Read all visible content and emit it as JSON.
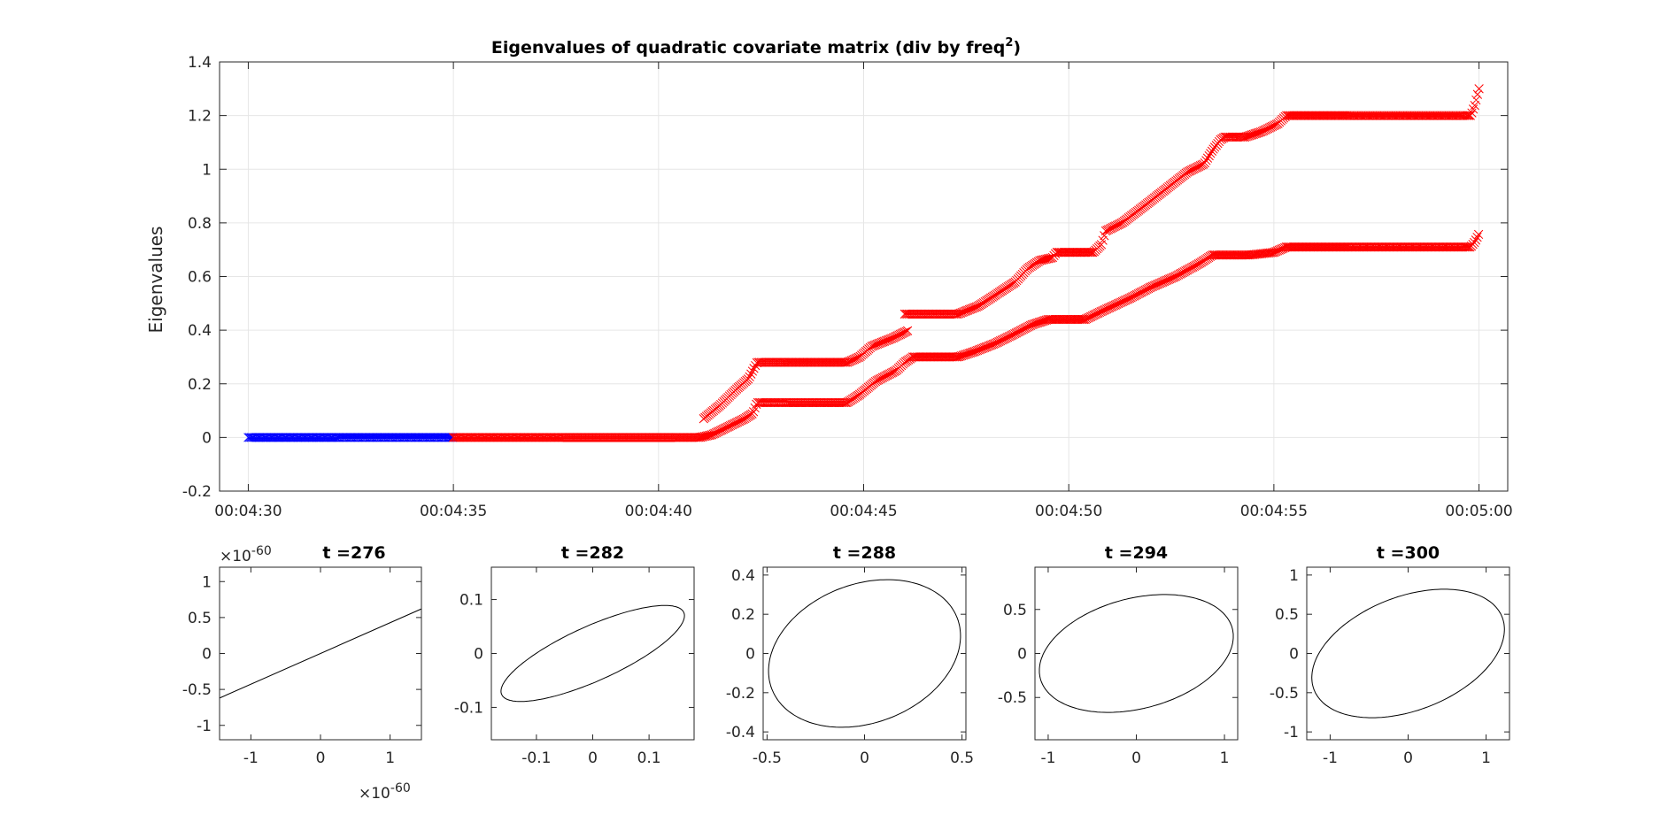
{
  "chart_data": [
    {
      "type": "scatter",
      "title": "Eigenvalues of quadratic covariate matrix (div by freq",
      "title_sup": "2",
      "title_end": ")",
      "xlabel": "",
      "ylabel": "Eigenvalues",
      "x_tick_labels": [
        "00:04:30",
        "00:04:35",
        "00:04:40",
        "00:04:45",
        "00:04:50",
        "00:04:55",
        "00:05:00"
      ],
      "x_ticks_s": [
        270,
        275,
        280,
        285,
        290,
        295,
        300
      ],
      "xlim": [
        269.3,
        300.7
      ],
      "ylim": [
        -0.2,
        1.4
      ],
      "y_ticks": [
        -0.2,
        0,
        0.2,
        0.4,
        0.6,
        0.8,
        1,
        1.2,
        1.4
      ],
      "y_tick_labels": [
        "-0.2",
        "0",
        "0.2",
        "0.4",
        "0.6",
        "0.8",
        "1",
        "1.2",
        "1.4"
      ],
      "grid": true,
      "marker": "x",
      "series": [
        {
          "color": "#0000ff",
          "x_range": [
            270,
            275
          ],
          "values": [
            [
              270,
              0
            ],
            [
              275,
              0
            ]
          ]
        },
        {
          "color": "#ff0000",
          "x_range": [
            275,
            300
          ],
          "values": [
            [
              275,
              0
            ],
            [
              281,
              0
            ],
            [
              281.3,
              0.01
            ],
            [
              281.7,
              0.04
            ],
            [
              282.1,
              0.07
            ],
            [
              282.3,
              0.09
            ],
            [
              282.4,
              0.13
            ],
            [
              284.6,
              0.13
            ],
            [
              284.9,
              0.16
            ],
            [
              285.3,
              0.21
            ],
            [
              285.8,
              0.25
            ],
            [
              286,
              0.28
            ],
            [
              286.2,
              0.3
            ],
            [
              287.3,
              0.3
            ],
            [
              287.7,
              0.32
            ],
            [
              288.2,
              0.35
            ],
            [
              288.6,
              0.38
            ],
            [
              289.1,
              0.42
            ],
            [
              289.5,
              0.44
            ],
            [
              290.4,
              0.44
            ],
            [
              290.8,
              0.47
            ],
            [
              291.5,
              0.52
            ],
            [
              292,
              0.56
            ],
            [
              292.6,
              0.6
            ],
            [
              293.2,
              0.65
            ],
            [
              293.5,
              0.68
            ],
            [
              294.4,
              0.68
            ],
            [
              295,
              0.69
            ],
            [
              295.3,
              0.71
            ],
            [
              299.8,
              0.71
            ],
            [
              299.9,
              0.73
            ],
            [
              300,
              0.76
            ]
          ]
        },
        {
          "color": "#ff0000",
          "x_range": [
            281.1,
            300
          ],
          "values": [
            [
              281.1,
              0.07
            ],
            [
              281.5,
              0.12
            ],
            [
              281.9,
              0.18
            ],
            [
              282.2,
              0.22
            ],
            [
              282.4,
              0.28
            ],
            [
              284.6,
              0.28
            ],
            [
              284.9,
              0.3
            ],
            [
              285.2,
              0.34
            ],
            [
              285.7,
              0.37
            ],
            [
              286.1,
              0.4
            ]
          ],
          "segments": [
            [
              [
                281.1,
                0.07
              ],
              [
                281.5,
                0.12
              ],
              [
                281.9,
                0.18
              ],
              [
                282.2,
                0.22
              ],
              [
                282.4,
                0.28
              ],
              [
                284.6,
                0.28
              ],
              [
                284.9,
                0.3
              ],
              [
                285.2,
                0.34
              ],
              [
                285.7,
                0.37
              ],
              [
                286.1,
                0.4
              ]
            ],
            [
              [
                286,
                0.46
              ],
              [
                287.3,
                0.46
              ],
              [
                287.8,
                0.49
              ],
              [
                288.3,
                0.54
              ],
              [
                288.7,
                0.58
              ],
              [
                289,
                0.63
              ],
              [
                289.3,
                0.66
              ],
              [
                289.6,
                0.67
              ],
              [
                289.7,
                0.69
              ],
              [
                290.6,
                0.69
              ],
              [
                290.8,
                0.72
              ],
              [
                290.9,
                0.77
              ],
              [
                291.3,
                0.8
              ],
              [
                291.9,
                0.87
              ],
              [
                292.4,
                0.93
              ],
              [
                292.9,
                0.99
              ],
              [
                293.3,
                1.02
              ],
              [
                293.5,
                1.07
              ],
              [
                293.7,
                1.11
              ],
              [
                293.8,
                1.12
              ],
              [
                294.3,
                1.12
              ],
              [
                294.7,
                1.14
              ],
              [
                295.1,
                1.17
              ],
              [
                295.3,
                1.2
              ],
              [
                299.8,
                1.2
              ],
              [
                299.9,
                1.24
              ],
              [
                300,
                1.3
              ]
            ]
          ]
        }
      ]
    },
    {
      "type": "line",
      "title": "t =276",
      "xlim": [
        -1.45,
        1.45
      ],
      "ylim": [
        -1.2,
        1.2
      ],
      "x_ticks": [
        -1,
        0,
        1
      ],
      "x_tick_labels": [
        "-1",
        "0",
        "1"
      ],
      "y_ticks": [
        -1,
        -0.5,
        0,
        0.5,
        1
      ],
      "y_tick_labels": [
        "-1",
        "-0.5",
        "0",
        "0.5",
        "1"
      ],
      "x_exponent": "×10",
      "x_exponent_power": "-60",
      "y_exponent": "×10",
      "y_exponent_power": "-60",
      "shape": "line",
      "values": [
        [
          -1.45,
          -0.62
        ],
        [
          1.45,
          0.62
        ]
      ]
    },
    {
      "type": "line",
      "title": "t =282",
      "xlim": [
        -0.18,
        0.18
      ],
      "ylim": [
        -0.16,
        0.16
      ],
      "x_ticks": [
        -0.1,
        0,
        0.1
      ],
      "x_tick_labels": [
        "-0.1",
        "0",
        "0.1"
      ],
      "y_ticks": [
        -0.1,
        0,
        0.1
      ],
      "y_tick_labels": [
        "-0.1",
        "0",
        "0.1"
      ],
      "shape": "ellipse",
      "a": 0.1787,
      "b": 0.0502,
      "rotation_deg": 25.4
    },
    {
      "type": "line",
      "title": "t =288",
      "xlim": [
        -0.52,
        0.52
      ],
      "ylim": [
        -0.44,
        0.44
      ],
      "x_ticks": [
        -0.5,
        0,
        0.5
      ],
      "x_tick_labels": [
        "-0.5",
        "0",
        "0.5"
      ],
      "y_ticks": [
        -0.4,
        -0.2,
        0,
        0.2,
        0.4
      ],
      "y_tick_labels": [
        "-0.4",
        "-0.2",
        "0",
        "0.2",
        "0.4"
      ],
      "shape": "ellipse",
      "a": 0.5088,
      "b": 0.3538,
      "rotation_deg": 20.6
    },
    {
      "type": "line",
      "title": "t =294",
      "xlim": [
        -1.15,
        1.15
      ],
      "ylim": [
        -0.98,
        0.98
      ],
      "x_ticks": [
        -1,
        0,
        1
      ],
      "x_tick_labels": [
        "-1",
        "0",
        "1"
      ],
      "y_ticks": [
        -0.5,
        0,
        0.5
      ],
      "y_tick_labels": [
        "-0.5",
        "0",
        "0.5"
      ],
      "shape": "ellipse",
      "a": 1.1255,
      "b": 0.6262,
      "rotation_deg": 14.7
    },
    {
      "type": "line",
      "title": "t =300",
      "xlim": [
        -1.3,
        1.3
      ],
      "ylim": [
        -1.1,
        1.1
      ],
      "x_ticks": [
        -1,
        0,
        1
      ],
      "x_tick_labels": [
        "-1",
        "0",
        "1"
      ],
      "y_ticks": [
        -1,
        -0.5,
        0,
        0.5,
        1
      ],
      "y_tick_labels": [
        "-1",
        "-0.5",
        "0",
        "0.5",
        "1"
      ],
      "shape": "ellipse",
      "a": 1.2922,
      "b": 0.726,
      "rotation_deg": 20.8
    }
  ]
}
